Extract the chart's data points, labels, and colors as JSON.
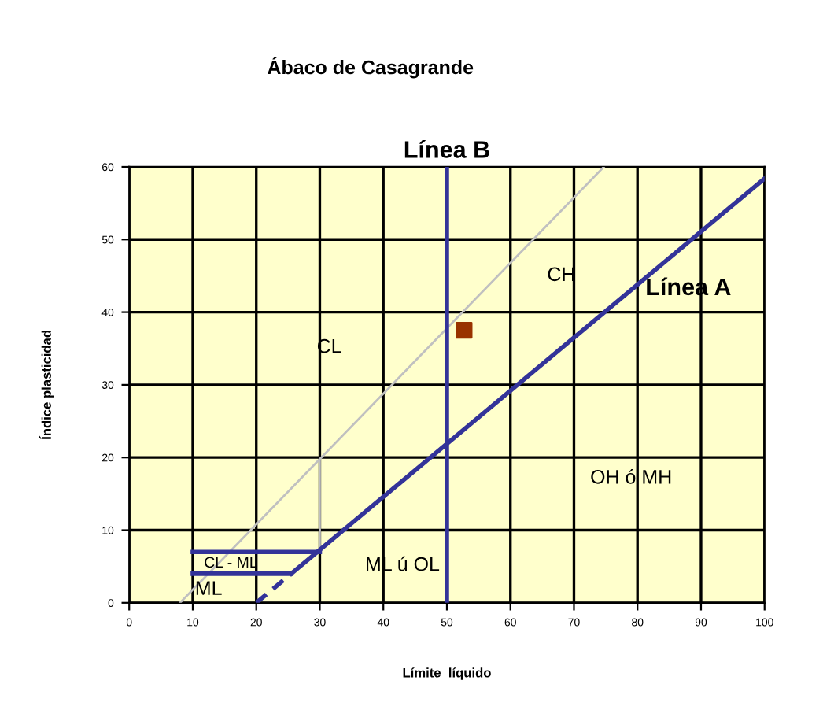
{
  "chart_data": {
    "type": "line",
    "title": "Ábaco de Casagrande",
    "xlabel": "Límite  líquido",
    "ylabel": "Índice plasticidad",
    "xlim": [
      0,
      100
    ],
    "ylim": [
      0,
      60
    ],
    "xticks": [
      0,
      10,
      20,
      30,
      40,
      50,
      60,
      70,
      80,
      90,
      100
    ],
    "yticks": [
      0,
      10,
      20,
      30,
      40,
      50,
      60
    ],
    "grid": true,
    "series": [
      {
        "color": "#c0c0c0",
        "x": [
          8,
          74.7
        ],
        "values": [
          0,
          60
        ],
        "line_style": "solid"
      },
      {
        "color": "#c0c0c0",
        "x": [
          30,
          30
        ],
        "values": [
          7,
          19.8
        ],
        "line_style": "solid"
      },
      {
        "color": "#333399",
        "x": [
          25.5,
          100
        ],
        "values": [
          4,
          58.4
        ],
        "line_style": "solid"
      },
      {
        "color": "#333399",
        "x": [
          20,
          25.5
        ],
        "values": [
          0,
          4
        ],
        "line_style": "dashed"
      },
      {
        "color": "#333399",
        "x": [
          50,
          50
        ],
        "values": [
          0,
          60
        ],
        "line_style": "solid"
      },
      {
        "color": "#333399",
        "x": [
          10,
          30
        ],
        "values": [
          7,
          7
        ],
        "line_style": "solid"
      },
      {
        "color": "#333399",
        "x": [
          10,
          25.5
        ],
        "values": [
          4,
          4
        ],
        "line_style": "solid"
      },
      {
        "type": "scatter",
        "color": "#993300",
        "x": [
          52.7
        ],
        "values": [
          37.5
        ],
        "marker": "square"
      }
    ],
    "annotations": [
      "Línea B",
      "Línea A",
      "CH",
      "CL",
      "OH ó MH",
      "CL - ML",
      "ML",
      "ML ú OL"
    ]
  }
}
